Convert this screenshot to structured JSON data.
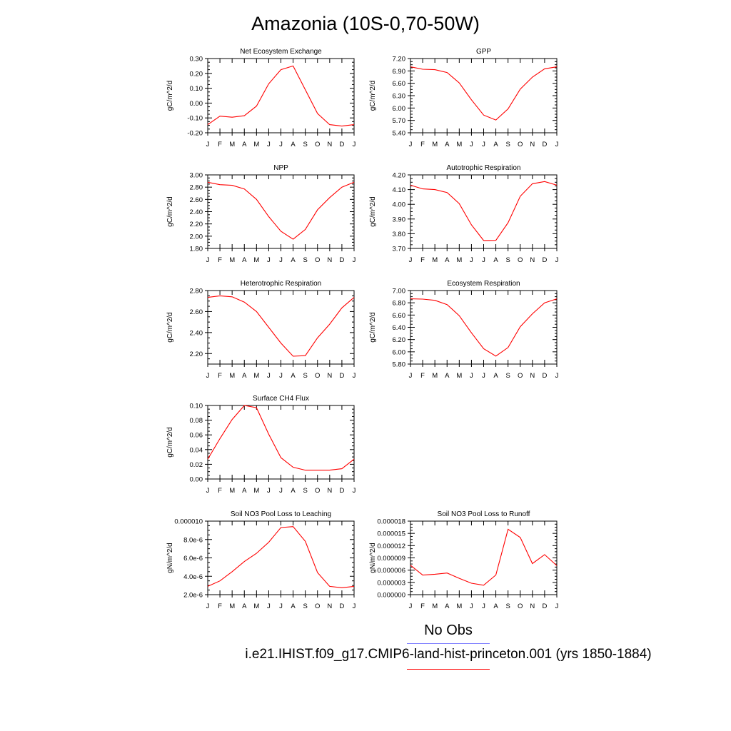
{
  "page_title": "Amazonia (10S-0,70-50W)",
  "legend": {
    "obs_label": "No Obs",
    "obs_color": "#8080ff",
    "case_label": "i.e21.IHIST.f09_g17.CMIP6-land-hist-princeton.001 (yrs 1850-1884)",
    "case_color": "#ff0000"
  },
  "chart_data": [
    {
      "type": "line",
      "title": "Net Ecosystem Exchange",
      "ylabel": "gC/m^2/d",
      "x": [
        "J",
        "F",
        "M",
        "A",
        "M",
        "J",
        "J",
        "A",
        "S",
        "O",
        "N",
        "D",
        "J"
      ],
      "ylim": [
        -0.2,
        0.3
      ],
      "yticks": [
        "0.30",
        "0.20",
        "0.10",
        "0.00",
        "-0.10",
        "-0.20"
      ],
      "ytick_values": [
        0.3,
        0.2,
        0.1,
        0.0,
        -0.1,
        -0.2
      ],
      "series": [
        {
          "values": [
            -0.145,
            -0.088,
            -0.095,
            -0.085,
            -0.02,
            0.13,
            0.225,
            0.25,
            0.09,
            -0.07,
            -0.145,
            -0.155,
            -0.145
          ]
        }
      ],
      "line_color": "#ff0000"
    },
    {
      "type": "line",
      "title": "GPP",
      "ylabel": "gC/m^2/d",
      "x": [
        "J",
        "F",
        "M",
        "A",
        "M",
        "J",
        "J",
        "A",
        "S",
        "O",
        "N",
        "D",
        "J"
      ],
      "ylim": [
        5.4,
        7.2
      ],
      "yticks": [
        "7.20",
        "6.90",
        "6.60",
        "6.30",
        "6.00",
        "5.70",
        "5.40"
      ],
      "ytick_values": [
        7.2,
        6.9,
        6.6,
        6.3,
        6.0,
        5.7,
        5.4
      ],
      "series": [
        {
          "values": [
            7.0,
            6.94,
            6.93,
            6.86,
            6.61,
            6.2,
            5.83,
            5.71,
            5.98,
            6.46,
            6.75,
            6.95,
            7.0
          ]
        }
      ],
      "line_color": "#ff0000"
    },
    {
      "type": "line",
      "title": "NPP",
      "ylabel": "gC/m^2/d",
      "x": [
        "J",
        "F",
        "M",
        "A",
        "M",
        "J",
        "J",
        "A",
        "S",
        "O",
        "N",
        "D",
        "J"
      ],
      "ylim": [
        1.8,
        3.0
      ],
      "yticks": [
        "3.00",
        "2.80",
        "2.60",
        "2.40",
        "2.20",
        "2.00",
        "1.80"
      ],
      "ytick_values": [
        3.0,
        2.8,
        2.6,
        2.4,
        2.2,
        2.0,
        1.8
      ],
      "series": [
        {
          "values": [
            2.88,
            2.84,
            2.83,
            2.77,
            2.6,
            2.32,
            2.08,
            1.95,
            2.11,
            2.43,
            2.63,
            2.8,
            2.88
          ]
        }
      ],
      "line_color": "#ff0000"
    },
    {
      "type": "line",
      "title": "Autotrophic Respiration",
      "ylabel": "gC/m^2/d",
      "x": [
        "J",
        "F",
        "M",
        "A",
        "M",
        "J",
        "J",
        "A",
        "S",
        "O",
        "N",
        "D",
        "J"
      ],
      "ylim": [
        3.7,
        4.2
      ],
      "yticks": [
        "4.20",
        "4.10",
        "4.00",
        "3.90",
        "3.80",
        "3.70"
      ],
      "ytick_values": [
        4.2,
        4.1,
        4.0,
        3.9,
        3.8,
        3.7
      ],
      "series": [
        {
          "values": [
            4.13,
            4.105,
            4.1,
            4.08,
            4.005,
            3.86,
            3.754,
            3.755,
            3.875,
            4.055,
            4.14,
            4.155,
            4.13
          ]
        }
      ],
      "line_color": "#ff0000"
    },
    {
      "type": "line",
      "title": "Heterotrophic Respiration",
      "ylabel": "gC/m^2/d",
      "x": [
        "J",
        "F",
        "M",
        "A",
        "M",
        "J",
        "J",
        "A",
        "S",
        "O",
        "N",
        "D",
        "J"
      ],
      "ylim": [
        2.1,
        2.8
      ],
      "yticks": [
        "2.80",
        "2.60",
        "2.40",
        "2.20"
      ],
      "ytick_values": [
        2.8,
        2.6,
        2.4,
        2.2
      ],
      "series": [
        {
          "values": [
            2.735,
            2.75,
            2.74,
            2.69,
            2.6,
            2.45,
            2.3,
            2.175,
            2.18,
            2.35,
            2.48,
            2.635,
            2.735
          ]
        }
      ],
      "line_color": "#ff0000"
    },
    {
      "type": "line",
      "title": "Ecosystem Respiration",
      "ylabel": "gC/m^2/d",
      "x": [
        "J",
        "F",
        "M",
        "A",
        "M",
        "J",
        "J",
        "A",
        "S",
        "O",
        "N",
        "D",
        "J"
      ],
      "ylim": [
        5.8,
        7.0
      ],
      "yticks": [
        "7.00",
        "6.80",
        "6.60",
        "6.40",
        "6.20",
        "6.00",
        "5.80"
      ],
      "ytick_values": [
        7.0,
        6.8,
        6.6,
        6.4,
        6.2,
        6.0,
        5.8
      ],
      "series": [
        {
          "values": [
            6.865,
            6.86,
            6.84,
            6.77,
            6.59,
            6.31,
            6.05,
            5.93,
            6.07,
            6.41,
            6.62,
            6.8,
            6.865
          ]
        }
      ],
      "line_color": "#ff0000"
    },
    {
      "type": "line",
      "title": "Surface CH4 Flux",
      "ylabel": "gC/m^2/d",
      "x": [
        "J",
        "F",
        "M",
        "A",
        "M",
        "J",
        "J",
        "A",
        "S",
        "O",
        "N",
        "D",
        "J"
      ],
      "ylim": [
        0.0,
        0.1
      ],
      "yticks": [
        "0.10",
        "0.08",
        "0.06",
        "0.04",
        "0.02",
        "0.00"
      ],
      "ytick_values": [
        0.1,
        0.08,
        0.06,
        0.04,
        0.02,
        0.0
      ],
      "series": [
        {
          "values": [
            0.027,
            0.055,
            0.081,
            0.1,
            0.097,
            0.061,
            0.029,
            0.016,
            0.012,
            0.012,
            0.012,
            0.014,
            0.027
          ]
        }
      ],
      "line_color": "#ff0000"
    },
    {
      "type": "line",
      "title": "Soil NO3 Pool Loss to Leaching",
      "ylabel": "gN/m^2/d",
      "x": [
        "J",
        "F",
        "M",
        "A",
        "M",
        "J",
        "J",
        "A",
        "S",
        "O",
        "N",
        "D",
        "J"
      ],
      "ylim": [
        2e-06,
        1e-05
      ],
      "yticks": [
        "0.000010",
        "8.0e-6",
        "6.0e-6",
        "4.0e-6",
        "2.0e-6"
      ],
      "ytick_values": [
        1e-05,
        8e-06,
        6e-06,
        4e-06,
        2e-06
      ],
      "series": [
        {
          "values": [
            2.9e-06,
            3.5e-06,
            4.5e-06,
            5.6e-06,
            6.5e-06,
            7.7e-06,
            9.3e-06,
            9.4e-06,
            7.8e-06,
            4.4e-06,
            2.9e-06,
            2.75e-06,
            2.9e-06
          ]
        }
      ],
      "line_color": "#ff0000"
    },
    {
      "type": "line",
      "title": "Soil NO3 Pool Loss to Runoff",
      "ylabel": "gN/m^2/d",
      "x": [
        "J",
        "F",
        "M",
        "A",
        "M",
        "J",
        "J",
        "A",
        "S",
        "O",
        "N",
        "D",
        "J"
      ],
      "ylim": [
        0.0,
        1.8e-05
      ],
      "yticks": [
        "0.000018",
        "0.000015",
        "0.000012",
        "0.000009",
        "0.000006",
        "0.000003",
        "0.000000"
      ],
      "ytick_values": [
        1.8e-05,
        1.5e-05,
        1.2e-05,
        9e-06,
        6e-06,
        3e-06,
        0.0
      ],
      "series": [
        {
          "values": [
            7.2e-06,
            4.8e-06,
            5e-06,
            5.3e-06,
            4e-06,
            2.8e-06,
            2.3e-06,
            4.8e-06,
            1.6e-05,
            1.4e-05,
            7.6e-06,
            9.8e-06,
            7.1e-06
          ]
        }
      ],
      "line_color": "#ff0000"
    }
  ]
}
